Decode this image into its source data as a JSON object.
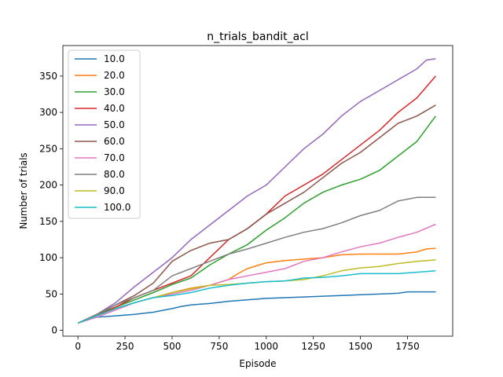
{
  "chart_data": {
    "type": "line",
    "title": "n_trials_bandit_acl",
    "xlabel": "Episode",
    "ylabel": "Number of trials",
    "xlim": [
      -80,
      1990
    ],
    "ylim": [
      -8,
      392
    ],
    "xticks": [
      0,
      250,
      500,
      750,
      1000,
      1250,
      1500,
      1750
    ],
    "yticks": [
      0,
      50,
      100,
      150,
      200,
      250,
      300,
      350
    ],
    "grid": false,
    "legend": "top-left",
    "series": [
      {
        "name": "10.0",
        "color": "#1f77b4",
        "x": [
          0,
          50,
          100,
          200,
          300,
          400,
          500,
          550,
          600,
          700,
          800,
          900,
          1000,
          1100,
          1200,
          1300,
          1400,
          1500,
          1600,
          1700,
          1750,
          1900
        ],
        "y": [
          10,
          15,
          18,
          20,
          22,
          25,
          30,
          33,
          35,
          37,
          40,
          42,
          44,
          45,
          46,
          47,
          48,
          49,
          50,
          51,
          53,
          53
        ]
      },
      {
        "name": "20.0",
        "color": "#ff7f0e",
        "x": [
          0,
          100,
          200,
          300,
          400,
          500,
          600,
          700,
          800,
          850,
          900,
          1000,
          1100,
          1200,
          1300,
          1400,
          1500,
          1600,
          1700,
          1800,
          1850,
          1900
        ],
        "y": [
          10,
          20,
          30,
          38,
          45,
          52,
          58,
          62,
          70,
          78,
          85,
          93,
          96,
          98,
          100,
          104,
          105,
          105,
          105,
          108,
          112,
          113
        ]
      },
      {
        "name": "30.0",
        "color": "#2ca02c",
        "x": [
          0,
          100,
          200,
          300,
          400,
          500,
          600,
          700,
          800,
          900,
          1000,
          1100,
          1200,
          1300,
          1400,
          1500,
          1600,
          1700,
          1800,
          1900
        ],
        "y": [
          10,
          22,
          32,
          42,
          52,
          63,
          72,
          90,
          105,
          118,
          138,
          155,
          175,
          190,
          200,
          208,
          220,
          240,
          260,
          295
        ]
      },
      {
        "name": "40.0",
        "color": "#d62728",
        "x": [
          0,
          100,
          200,
          300,
          400,
          500,
          600,
          700,
          800,
          900,
          1000,
          1100,
          1200,
          1300,
          1400,
          1500,
          1600,
          1700,
          1800,
          1900
        ],
        "y": [
          10,
          20,
          32,
          45,
          55,
          65,
          75,
          100,
          125,
          140,
          160,
          185,
          200,
          215,
          235,
          255,
          275,
          300,
          320,
          350
        ]
      },
      {
        "name": "50.0",
        "color": "#9467bd",
        "x": [
          0,
          100,
          200,
          300,
          400,
          500,
          600,
          700,
          800,
          900,
          1000,
          1100,
          1200,
          1300,
          1400,
          1500,
          1600,
          1700,
          1800,
          1850,
          1900
        ],
        "y": [
          10,
          22,
          38,
          60,
          80,
          100,
          125,
          145,
          165,
          185,
          200,
          225,
          250,
          270,
          295,
          315,
          330,
          345,
          360,
          372,
          374
        ]
      },
      {
        "name": "60.0",
        "color": "#8c564b",
        "x": [
          0,
          100,
          200,
          300,
          400,
          500,
          600,
          700,
          800,
          900,
          1000,
          1100,
          1200,
          1300,
          1400,
          1500,
          1600,
          1700,
          1800,
          1900
        ],
        "y": [
          10,
          22,
          35,
          48,
          65,
          95,
          110,
          120,
          125,
          140,
          160,
          175,
          190,
          210,
          230,
          245,
          265,
          285,
          295,
          310
        ]
      },
      {
        "name": "70.0",
        "color": "#e377c2",
        "x": [
          0,
          100,
          200,
          300,
          400,
          500,
          600,
          700,
          800,
          900,
          1000,
          1100,
          1200,
          1300,
          1400,
          1500,
          1600,
          1700,
          1800,
          1900
        ],
        "y": [
          10,
          18,
          28,
          38,
          45,
          50,
          55,
          62,
          70,
          75,
          80,
          85,
          95,
          100,
          108,
          115,
          120,
          128,
          135,
          146
        ]
      },
      {
        "name": "80.0",
        "color": "#7f7f7f",
        "x": [
          0,
          100,
          200,
          300,
          400,
          500,
          600,
          700,
          800,
          900,
          1000,
          1100,
          1200,
          1300,
          1400,
          1500,
          1600,
          1700,
          1800,
          1900
        ],
        "y": [
          10,
          22,
          35,
          45,
          55,
          75,
          85,
          95,
          105,
          112,
          120,
          128,
          135,
          140,
          148,
          158,
          165,
          178,
          183,
          183
        ]
      },
      {
        "name": "90.0",
        "color": "#bcbd22",
        "x": [
          0,
          100,
          200,
          300,
          400,
          500,
          600,
          700,
          800,
          900,
          1000,
          1100,
          1200,
          1300,
          1400,
          1500,
          1600,
          1700,
          1800,
          1900
        ],
        "y": [
          10,
          20,
          30,
          38,
          45,
          52,
          57,
          62,
          63,
          65,
          67,
          68,
          70,
          75,
          82,
          86,
          88,
          92,
          95,
          97
        ]
      },
      {
        "name": "100.0",
        "color": "#17becf",
        "x": [
          0,
          100,
          200,
          300,
          400,
          500,
          600,
          700,
          800,
          900,
          1000,
          1100,
          1200,
          1300,
          1400,
          1500,
          1600,
          1700,
          1800,
          1900
        ],
        "y": [
          10,
          20,
          30,
          38,
          45,
          48,
          52,
          58,
          62,
          65,
          67,
          68,
          72,
          73,
          75,
          78,
          78,
          78,
          80,
          82
        ]
      }
    ]
  }
}
